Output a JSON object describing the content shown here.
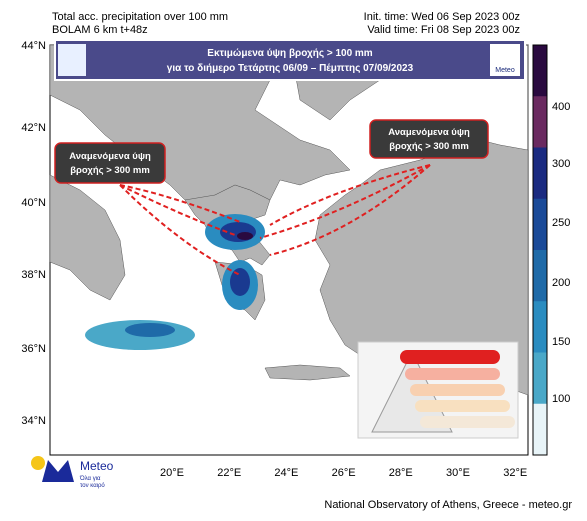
{
  "header": {
    "left": [
      "Total acc. precipitation over 100 mm",
      "BOLAM 6 km t+48z"
    ],
    "right": [
      "Init. time: Wed 06 Sep 2023 00z",
      "Valid time: Fri 08 Sep 2023 00z"
    ]
  },
  "banner": {
    "lines": [
      "Εκτιμώμενα ύψη βροχής > 100 mm",
      "για το διήμερο Τετάρτης 06/09 – Πέμπτης 07/09/2023"
    ],
    "logo": "Meteo"
  },
  "callouts": [
    {
      "lines": [
        "Αναμενόμενα ύψη",
        "βροχής > 300 mm"
      ]
    },
    {
      "lines": [
        "Αναμενόμενα ύψη",
        "βροχής > 300 mm"
      ]
    }
  ],
  "map": {
    "lat_labels": [
      "44°N",
      "42°N",
      "40°N",
      "38°N",
      "36°N",
      "34°N"
    ],
    "lon_labels": [
      "20°E",
      "22°E",
      "24°E",
      "26°E",
      "28°E",
      "30°E",
      "32°E"
    ]
  },
  "colorbar": {
    "labels": [
      "400",
      "300",
      "250",
      "200",
      "150",
      "100"
    ]
  },
  "logo": {
    "name": "Meteo",
    "slogan": [
      "Όλα για",
      "τον καιρό"
    ]
  },
  "footer": "National Observatory of Athens, Greece - meteo.gr"
}
